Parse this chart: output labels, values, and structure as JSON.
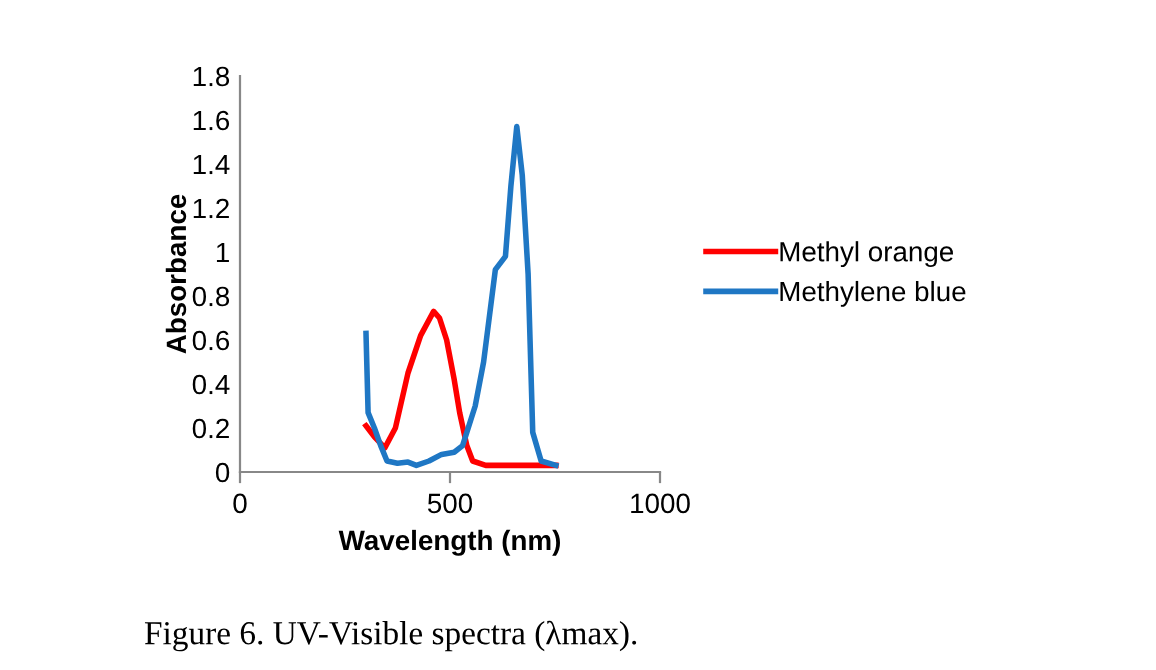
{
  "chart_data": {
    "type": "line",
    "xlabel": "Wavelength (nm)",
    "ylabel": "Absorbance",
    "xlim": [
      0,
      1000
    ],
    "xticks": [
      0,
      500,
      1000
    ],
    "ylim": [
      0,
      1.8
    ],
    "yticks": [
      0,
      0.2,
      0.4,
      0.6,
      0.8,
      1,
      1.2,
      1.4,
      1.6,
      1.8
    ],
    "grid": false,
    "legend": "right",
    "marker": "none",
    "line_style": "solid",
    "annotations": [
      "Figure 6. UV-Visible spectra (λmax)."
    ],
    "series": [
      {
        "name": "Methyl orange",
        "color": "#ff0000",
        "x": [
          300,
          320,
          345,
          370,
          400,
          430,
          461,
          475,
          492,
          510,
          523,
          540,
          554,
          585,
          650,
          752
        ],
        "values": [
          0.21,
          0.16,
          0.11,
          0.2,
          0.45,
          0.62,
          0.73,
          0.7,
          0.6,
          0.42,
          0.27,
          0.12,
          0.05,
          0.03,
          0.03,
          0.03
        ]
      },
      {
        "name": "Methylene blue",
        "color": "#1f77c4",
        "x": [
          300,
          305,
          320,
          335,
          350,
          375,
          400,
          420,
          450,
          480,
          510,
          530,
          560,
          580,
          600,
          608,
          632,
          645,
          659,
          672,
          686,
          697,
          717,
          752
        ],
        "values": [
          0.63,
          0.27,
          0.2,
          0.12,
          0.05,
          0.04,
          0.045,
          0.03,
          0.05,
          0.08,
          0.09,
          0.12,
          0.3,
          0.5,
          0.8,
          0.92,
          0.98,
          1.3,
          1.57,
          1.35,
          0.9,
          0.18,
          0.05,
          0.03
        ]
      }
    ]
  }
}
